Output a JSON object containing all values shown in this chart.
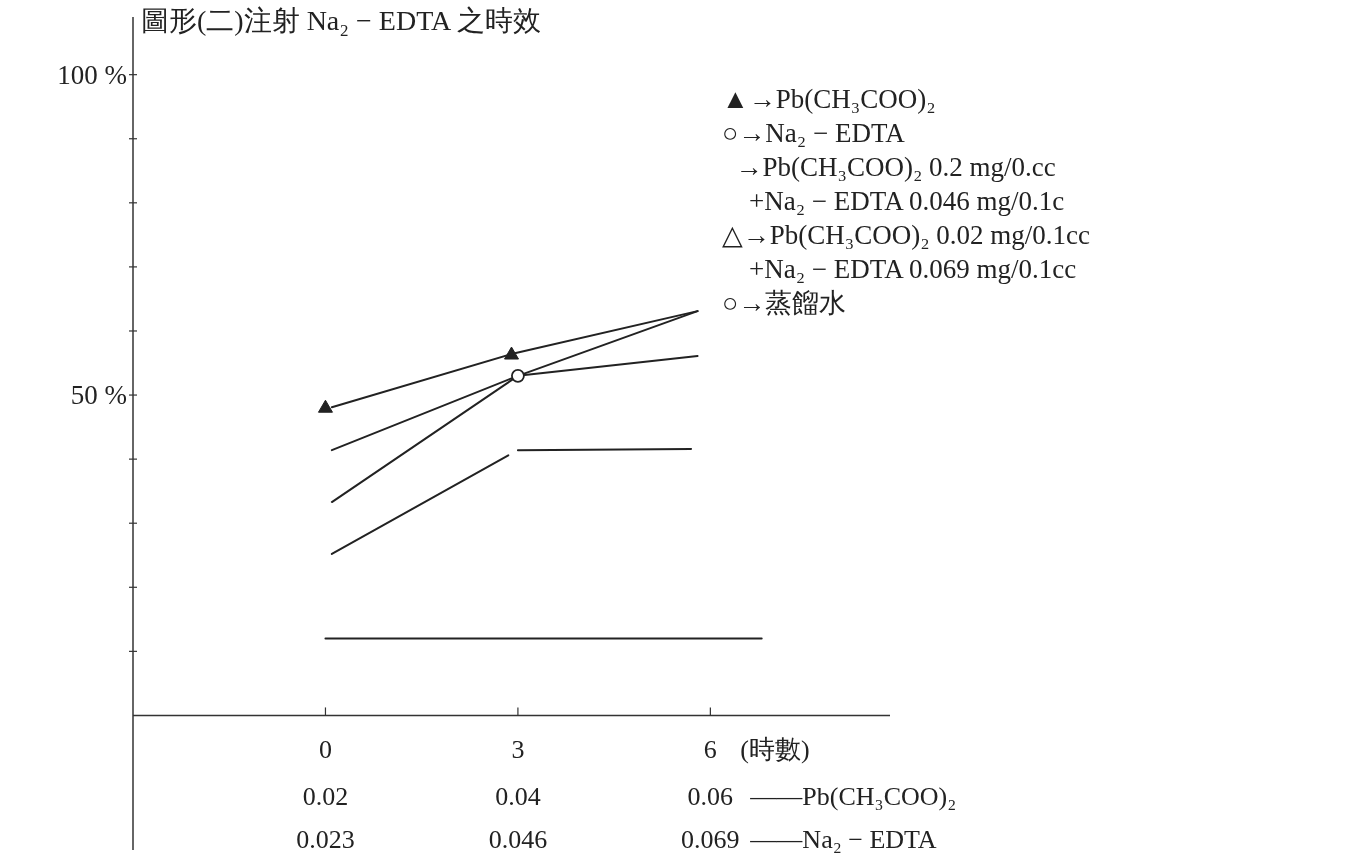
{
  "chart_data": {
    "type": "line",
    "title": "圖形(二)注射 Na₂ − EDTA 之時效",
    "xlabel": "(時數)",
    "xlim": [
      -3,
      8.8
    ],
    "ylim": [
      -21,
      109
    ],
    "xticks": [
      0,
      3,
      6
    ],
    "yticks": [
      {
        "value": 10,
        "label": null
      },
      {
        "value": 20,
        "label": null
      },
      {
        "value": 30,
        "label": null
      },
      {
        "value": 40,
        "label": null
      },
      {
        "value": 50,
        "label": "50 %"
      },
      {
        "value": 60,
        "label": null
      },
      {
        "value": 70,
        "label": null
      },
      {
        "value": 80,
        "label": null
      },
      {
        "value": 90,
        "label": null
      },
      {
        "value": 100,
        "label": "100 %"
      }
    ],
    "grid": false,
    "series": [
      {
        "type": "line",
        "color": "#222222",
        "x": [
          0.1,
          2.9,
          5.8
        ],
        "values": [
          48.1,
          56.4,
          63.1
        ]
      },
      {
        "type": "line",
        "color": "#222222",
        "x": [
          0.1,
          3,
          5.8
        ],
        "values": [
          41.4,
          53,
          56.1
        ]
      },
      {
        "type": "line",
        "color": "#222222",
        "x": [
          0.1,
          3,
          5.8
        ],
        "values": [
          33.3,
          53,
          63.1
        ]
      },
      {
        "type": "line",
        "color": "#222222",
        "x": [
          0.1,
          2.85
        ],
        "values": [
          25.2,
          40.6
        ]
      },
      {
        "type": "line",
        "color": "#222222",
        "x": [
          3,
          5.7
        ],
        "values": [
          41.4,
          41.6
        ]
      },
      {
        "type": "line",
        "color": "#222222",
        "x": [
          0,
          6.8
        ],
        "values": [
          12,
          12
        ]
      },
      {
        "type": "scatter",
        "marker": "triangle",
        "color": "#222222",
        "x": [
          0,
          2.9
        ],
        "values": [
          48.1,
          56.4
        ]
      },
      {
        "type": "scatter",
        "marker": "circle",
        "color": "#222222",
        "x": [
          3
        ],
        "values": [
          53
        ]
      }
    ],
    "annotations": [
      "▲→Pb(CH₃COO)₂",
      "○→Na₂ − EDTA",
      "  →Pb(CH₃COO)₂ 0.2 mg/0.cc",
      "    +Na₂ − EDTA 0.046 mg/0.1c",
      "△→Pb(CH₃COO)₂ 0.02 mg/0.1cc",
      "    +Na₂ − EDTA 0.069 mg/0.1cc",
      "○→蒸餾水",
      "0.02",
      "0.04",
      "0.06",
      "——Pb(CH₃COO)₂",
      "0.023",
      "0.046",
      "0.069",
      "——Na₂ − EDTA"
    ]
  }
}
